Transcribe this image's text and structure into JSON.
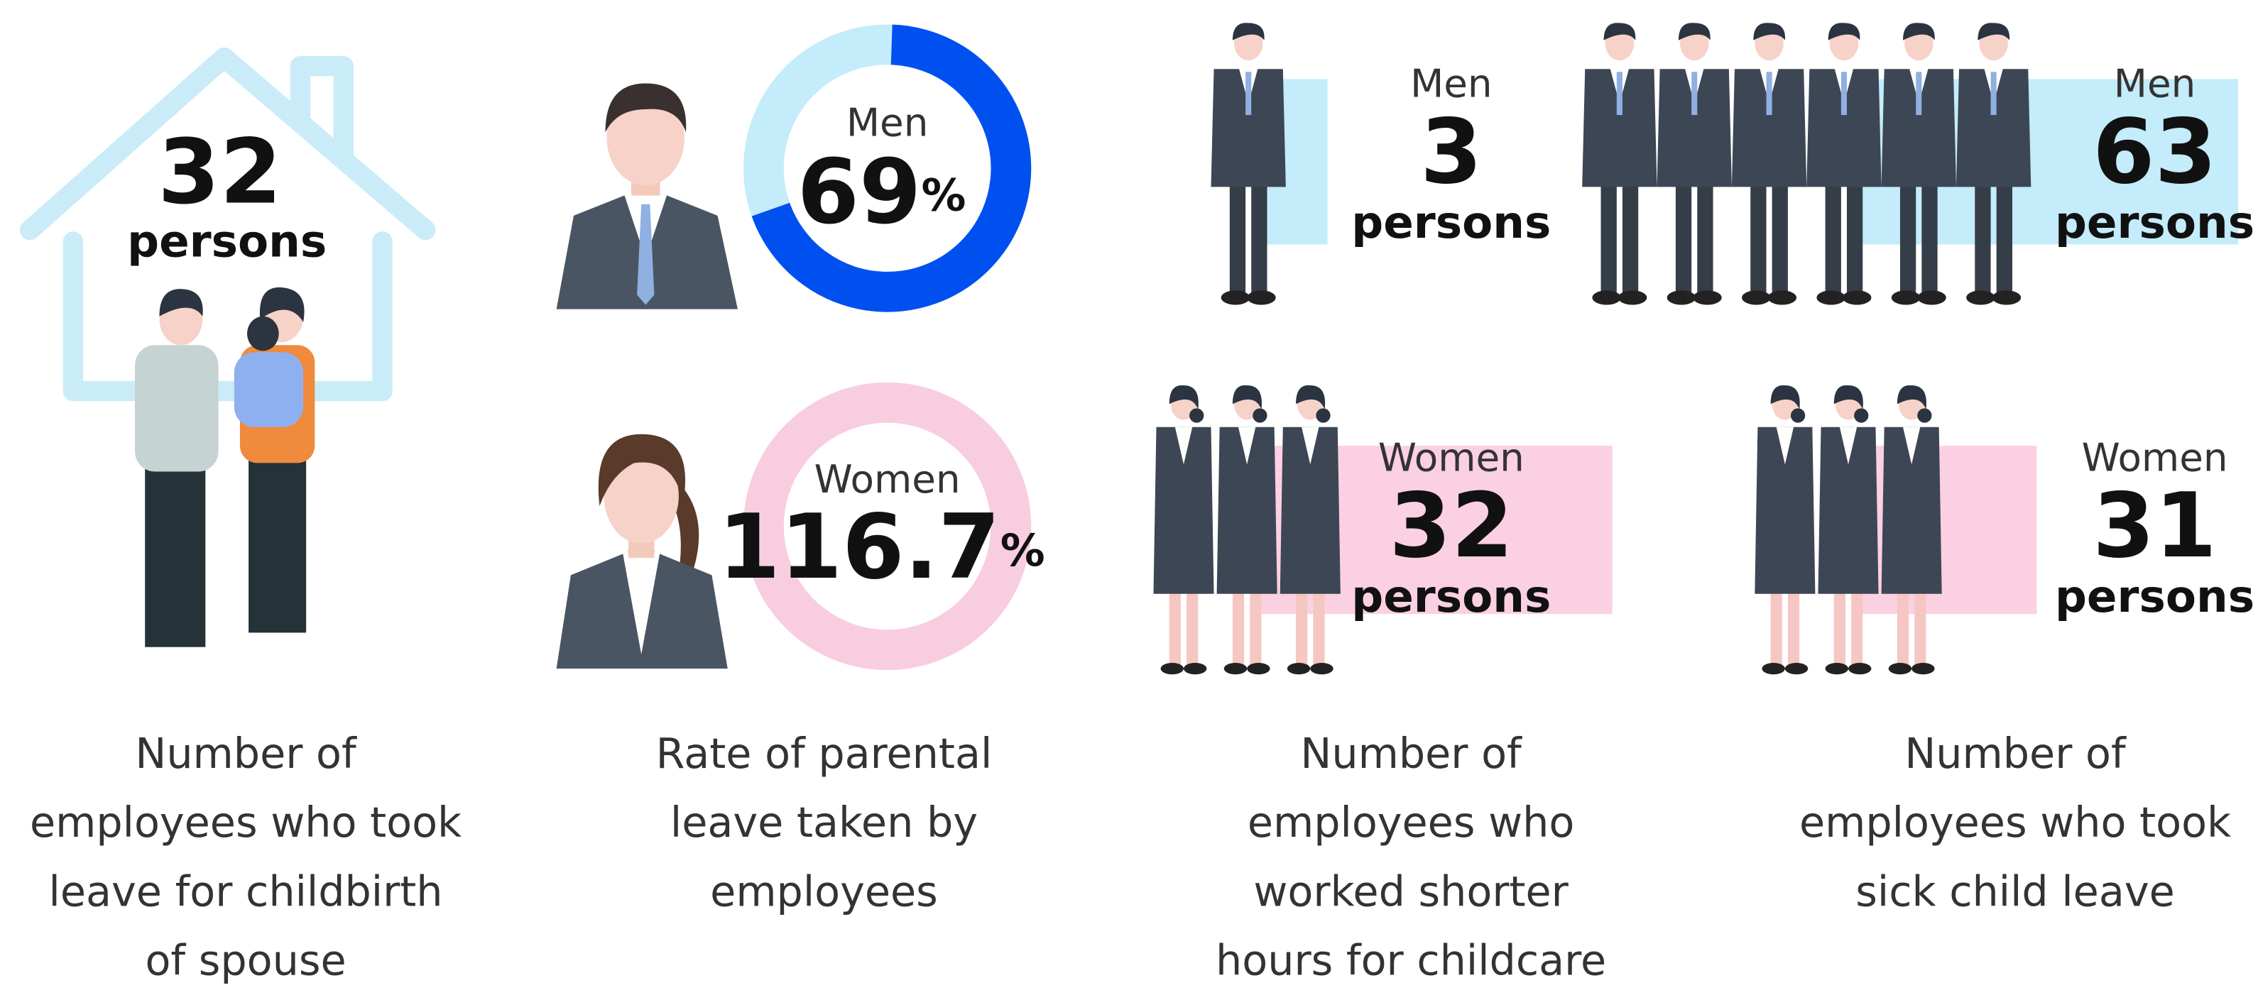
{
  "childbirth_leave": {
    "value": 32,
    "unit": "persons",
    "caption": [
      "Number of",
      "employees who took",
      "leave for childbirth",
      "of spouse"
    ]
  },
  "parental_leave_rate": {
    "men": {
      "label": "Men",
      "value": 69,
      "unit": "%"
    },
    "women": {
      "label": "Women",
      "value": 116.7,
      "unit": "%"
    },
    "caption": [
      "Rate of parental",
      "leave taken by",
      "employees"
    ]
  },
  "shorter_hours": {
    "men": {
      "label": "Men",
      "value": 3,
      "unit": "persons"
    },
    "women": {
      "label": "Women",
      "value": 32,
      "unit": "persons"
    },
    "caption": [
      "Number of",
      "employees who",
      "worked shorter",
      "hours for childcare"
    ]
  },
  "sick_child_leave": {
    "men": {
      "label": "Men",
      "value": 63,
      "unit": "persons"
    },
    "women": {
      "label": "Women",
      "value": 31,
      "unit": "persons"
    },
    "caption": [
      "Number of",
      "employees who took",
      "sick child leave"
    ]
  }
}
